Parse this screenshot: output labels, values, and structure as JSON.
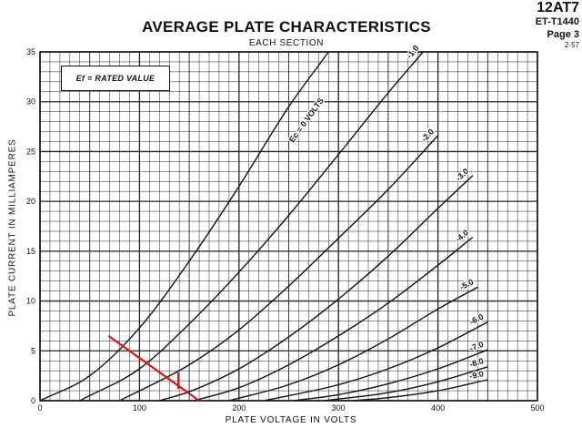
{
  "header": {
    "title": "AVERAGE PLATE CHARACTERISTICS",
    "subtitle": "EACH SECTION",
    "tube": "12AT7",
    "code": "ET-T1440",
    "page": "Page 3",
    "date": "2-57"
  },
  "legend_note": "Ef = RATED VALUE",
  "colors": {
    "grid": "#222222",
    "curve": "#111111",
    "loadline": "#e01010"
  },
  "chart_data": {
    "type": "line",
    "title": "AVERAGE PLATE CHARACTERISTICS",
    "subtitle": "EACH SECTION",
    "xlabel": "PLATE VOLTAGE IN VOLTS",
    "ylabel": "PLATE CURRENT IN MILLIAMPERES",
    "xlim": [
      0,
      500
    ],
    "ylim": [
      0,
      35
    ],
    "xticks": [
      "0",
      "100",
      "200",
      "300",
      "400",
      "500"
    ],
    "yticks": [
      "0",
      "5",
      "10",
      "15",
      "20",
      "25",
      "30",
      "35"
    ],
    "grid": true,
    "series": [
      {
        "name": "Ec = 0 VOLTS",
        "points": [
          [
            0,
            0
          ],
          [
            50,
            2.5
          ],
          [
            100,
            7.3
          ],
          [
            150,
            14
          ],
          [
            200,
            21.5
          ],
          [
            250,
            29.5
          ],
          [
            290,
            35
          ]
        ]
      },
      {
        "name": "-1.0",
        "points": [
          [
            40,
            0
          ],
          [
            100,
            3.2
          ],
          [
            150,
            7.7
          ],
          [
            200,
            12.9
          ],
          [
            250,
            18.6
          ],
          [
            300,
            24.7
          ],
          [
            350,
            30.9
          ],
          [
            385,
            35
          ]
        ]
      },
      {
        "name": "-2.0",
        "points": [
          [
            80,
            0
          ],
          [
            150,
            3.6
          ],
          [
            200,
            7.1
          ],
          [
            250,
            11.5
          ],
          [
            300,
            16.3
          ],
          [
            350,
            21.2
          ],
          [
            400,
            26.6
          ]
        ]
      },
      {
        "name": "-3.0",
        "points": [
          [
            120,
            0
          ],
          [
            150,
            0.9
          ],
          [
            200,
            3.2
          ],
          [
            250,
            6.4
          ],
          [
            300,
            10.2
          ],
          [
            350,
            14.5
          ],
          [
            400,
            19.3
          ],
          [
            435,
            22.6
          ]
        ]
      },
      {
        "name": "-4.0",
        "points": [
          [
            155,
            0
          ],
          [
            200,
            1.3
          ],
          [
            250,
            3.6
          ],
          [
            300,
            6.5
          ],
          [
            350,
            9.8
          ],
          [
            400,
            13.6
          ],
          [
            435,
            16.4
          ]
        ]
      },
      {
        "name": "-5.0",
        "points": [
          [
            190,
            0
          ],
          [
            250,
            1.6
          ],
          [
            300,
            3.6
          ],
          [
            350,
            6.2
          ],
          [
            400,
            9.2
          ],
          [
            440,
            11.4
          ]
        ]
      },
      {
        "name": "-6.0",
        "points": [
          [
            225,
            0
          ],
          [
            300,
            1.6
          ],
          [
            350,
            3.2
          ],
          [
            400,
            5.3
          ],
          [
            450,
            7.9
          ]
        ]
      },
      {
        "name": "-7.0",
        "points": [
          [
            255,
            0
          ],
          [
            300,
            0.6
          ],
          [
            350,
            1.7
          ],
          [
            400,
            3.2
          ],
          [
            450,
            5.1
          ]
        ]
      },
      {
        "name": "-8.0",
        "points": [
          [
            285,
            0
          ],
          [
            350,
            0.8
          ],
          [
            400,
            1.9
          ],
          [
            450,
            3.4
          ]
        ]
      },
      {
        "name": "-9.0",
        "points": [
          [
            315,
            0
          ],
          [
            350,
            0.3
          ],
          [
            400,
            1.0
          ],
          [
            450,
            2.1
          ]
        ]
      }
    ],
    "load_line": {
      "points": [
        [
          69,
          6.5
        ],
        [
          160,
          0
        ]
      ],
      "operating_point": [
        139,
        2.0
      ]
    }
  }
}
